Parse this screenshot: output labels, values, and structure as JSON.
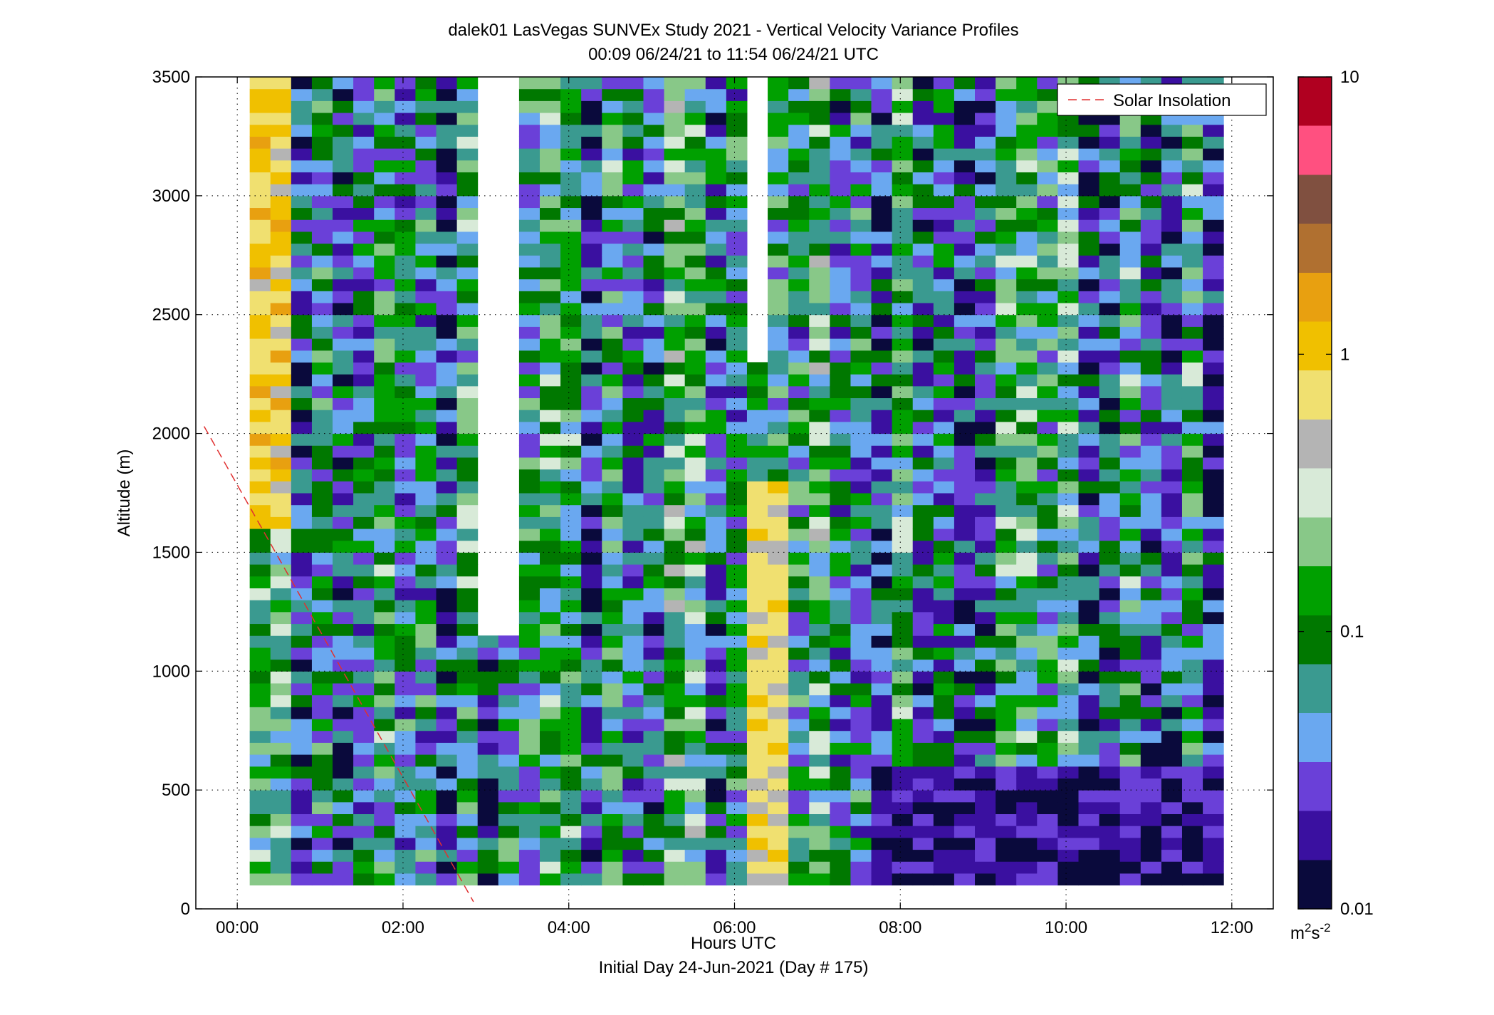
{
  "figure": {
    "title_line1": "dalek01 LasVegas SUNVEx Study 2021 - Vertical Velocity Variance Profiles",
    "title_line2": "00:09 06/24/21 to 11:54 06/24/21  UTC",
    "xlabel": "Hours UTC",
    "xlabel2": "Initial Day 24-Jun-2021 (Day # 175)",
    "ylabel": "Altitude (m)",
    "legend_label": "Solar Insolation",
    "colorbar_unit_base": "m",
    "colorbar_unit_sup1": "2",
    "colorbar_unit_mid": "s",
    "colorbar_unit_sup2": "-2"
  },
  "chart_data": {
    "type": "heatmap",
    "title": "dalek01 LasVegas SUNVEx Study 2021 - Vertical Velocity Variance Profiles",
    "subtitle": "00:09 06/24/21 to 11:54 06/24/21  UTC",
    "xlabel": "Hours UTC",
    "ylabel": "Altitude (m)",
    "x_unit": "hours UTC",
    "xlim": [
      -0.5,
      12.5
    ],
    "ylim": [
      0,
      3500
    ],
    "x_ticks": [
      0,
      2,
      4,
      6,
      8,
      10,
      12
    ],
    "x_tick_labels": [
      "00:00",
      "02:00",
      "04:00",
      "06:00",
      "08:00",
      "10:00",
      "12:00"
    ],
    "y_ticks": [
      0,
      500,
      1000,
      1500,
      2000,
      2500,
      3000,
      3500
    ],
    "y_tick_labels": [
      "0",
      "500",
      "1000",
      "1500",
      "2000",
      "2500",
      "3000",
      "3500"
    ],
    "grid": true,
    "colorbar": {
      "scale": "log",
      "range": [
        0.01,
        10
      ],
      "ticks": [
        0.01,
        0.1,
        1,
        10
      ],
      "tick_labels": [
        "0.01",
        "0.1",
        "1",
        "10"
      ],
      "colors": [
        "#0a0a3c",
        "#3a10a0",
        "#6a40d8",
        "#6aa8f0",
        "#3a9a90",
        "#007800",
        "#00a000",
        "#88c888",
        "#d8ead8",
        "#b4b4b4",
        "#f0e070",
        "#f0c000",
        "#e8a010",
        "#b07030",
        "#805040",
        "#ff5080",
        "#b00020"
      ]
    },
    "data_extent": {
      "x_start": 0.15,
      "x_end": 11.9,
      "alt_min": 100,
      "alt_max": 3500
    },
    "grid_cells": {
      "time_step_hours": 0.25,
      "altitude_step_m": 50
    },
    "masked_gaps": [
      {
        "x_from": 2.9,
        "x_to": 3.4,
        "alt_from": 1150,
        "alt_to": 3500
      },
      {
        "x_from": 5.95,
        "x_to": 6.3,
        "alt_from": 2300,
        "alt_to": 3500
      }
    ],
    "features": [
      {
        "description": "high variance column near 00:30",
        "x_from": 0.15,
        "x_to": 0.6,
        "alt_from": 1600,
        "alt_to": 3500,
        "value_range": [
          0.5,
          1.5
        ]
      },
      {
        "description": "high variance plume near 06:30",
        "x_from": 5.95,
        "x_to": 6.65,
        "alt_from": 100,
        "alt_to": 1800,
        "value_range": [
          0.5,
          1.0
        ]
      },
      {
        "description": "low variance near-surface layer 08:00-12:00",
        "x_from": 7.5,
        "x_to": 11.9,
        "alt_from": 100,
        "alt_to": 600,
        "value_range": [
          0.01,
          0.03
        ]
      }
    ],
    "series": [
      {
        "name": "Solar Insolation",
        "style": "dashed",
        "color": "#e03030",
        "x": [
          -0.4,
          2.85
        ],
        "y": [
          2030,
          30
        ]
      }
    ],
    "legend_placement": "top-right"
  }
}
